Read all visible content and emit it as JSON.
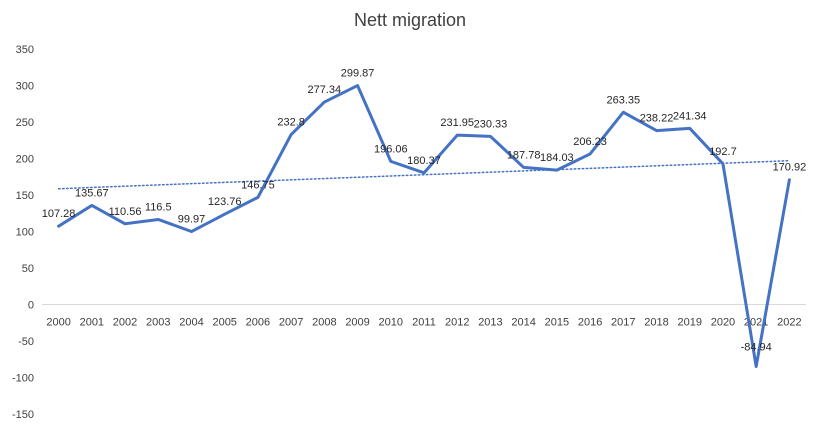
{
  "chart_data": {
    "type": "line",
    "title": "Nett migration",
    "xlabel": "",
    "ylabel": "",
    "ylim": [
      -150,
      350
    ],
    "ytick_step": 50,
    "grid": false,
    "categories": [
      "2000",
      "2001",
      "2002",
      "2003",
      "2004",
      "2005",
      "2006",
      "2007",
      "2008",
      "2009",
      "2010",
      "2011",
      "2012",
      "2013",
      "2014",
      "2015",
      "2016",
      "2017",
      "2018",
      "2019",
      "2020",
      "2021",
      "2022"
    ],
    "series": [
      {
        "name": "Nett migration",
        "color": "#4472C4",
        "values": [
          107.28,
          135.67,
          110.56,
          116.5,
          99.97,
          123.76,
          146.75,
          232.8,
          277.34,
          299.87,
          196.06,
          180.37,
          231.95,
          230.33,
          187.78,
          184.03,
          206.23,
          263.35,
          238.22,
          241.34,
          192.7,
          -84.94,
          170.92
        ],
        "labels": [
          "107.28",
          "135.67",
          "110.56",
          "116.5",
          "99.97",
          "123.76",
          "146.75",
          "232.8",
          "277.34",
          "299.87",
          "196.06",
          "180.37",
          "231.95",
          "230.33",
          "187.78",
          "184.03",
          "206.23",
          "263.35",
          "238.22",
          "241.34",
          "192.7",
          "-84.94",
          "170.92"
        ]
      }
    ],
    "trendline": {
      "type": "linear",
      "style": "dotted",
      "color": "#4472C4"
    }
  }
}
